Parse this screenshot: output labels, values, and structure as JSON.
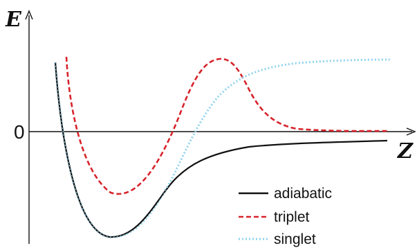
{
  "axes": {
    "y_letter": "E",
    "x_letter": "Z",
    "zero_tick": "0"
  },
  "legend": {
    "items": [
      {
        "label": "adiabatic",
        "color": "#111111",
        "dash": "solid"
      },
      {
        "label": "triplet",
        "color": "#d7232b",
        "dash": "dashed"
      },
      {
        "label": "singlet",
        "color": "#8fd3ee",
        "dash": "dotted"
      }
    ]
  },
  "curves": {
    "adiabatic_color": "#111111",
    "triplet_color": "#d7232b",
    "singlet_color": "#8fd3ee"
  }
}
